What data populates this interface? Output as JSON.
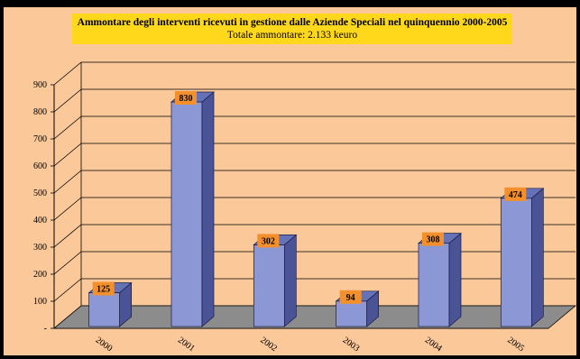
{
  "chart_data": {
    "type": "bar",
    "title": "Ammontare degli interventi ricevuti in gestione dalle Aziende Speciali nel quinquennio 2000-2005",
    "subtitle": "Totale ammontare: 2.133 keuro",
    "categories": [
      "2000",
      "2001",
      "2002",
      "2003",
      "2004",
      "2005"
    ],
    "values": [
      125,
      830,
      302,
      94,
      308,
      474
    ],
    "ylim": [
      0,
      900
    ],
    "yticks": [
      "-",
      "100",
      "200",
      "300",
      "400",
      "500",
      "600",
      "700",
      "800",
      "900"
    ],
    "grid": true,
    "bar_style": "3d",
    "colors": {
      "background": "#fbc89a",
      "title_box": "#ffd81c",
      "bar_front": "#8c98d6",
      "bar_side": "#4a5396",
      "bar_top": "#6572b8",
      "floor": "#8c8c8c",
      "label_box": "#f4902c"
    }
  }
}
